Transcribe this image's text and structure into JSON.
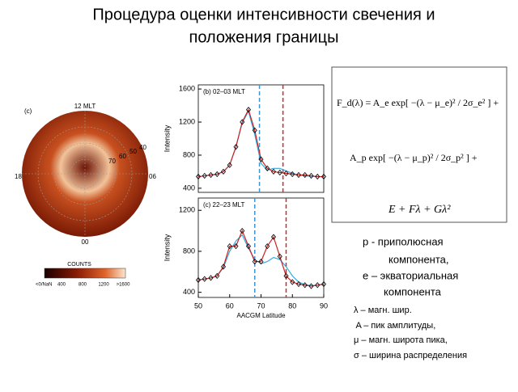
{
  "title_lines": [
    "Процедура оценки интенсивности свечения и",
    "положения границы"
  ],
  "polar_plot": {
    "panel_label": "(c)",
    "top_label": "12 MLT",
    "left_label": "18",
    "right_label": "06",
    "bottom_label": "00",
    "lat_labels": [
      "40",
      "50",
      "60",
      "70"
    ],
    "colorbar": {
      "title": "COUNTS",
      "ticks": [
        "<0/NaN",
        "400",
        "800",
        "1200",
        ">1600"
      ]
    }
  },
  "charts": [
    {
      "type": "line",
      "panel_label": "(b) 02–03 MLT",
      "y_label": "Intensity",
      "x": [
        50,
        52,
        54,
        56,
        58,
        60,
        62,
        64,
        66,
        68,
        70,
        72,
        74,
        76,
        78,
        80,
        82,
        84,
        86,
        88,
        90
      ],
      "series": [
        {
          "color": "#cc2222",
          "values": [
            540,
            550,
            560,
            570,
            600,
            680,
            900,
            1200,
            1350,
            1100,
            750,
            640,
            600,
            590,
            580,
            570,
            560,
            560,
            550,
            540,
            540
          ]
        },
        {
          "color": "#33aadd",
          "values": [
            540,
            550,
            560,
            570,
            600,
            680,
            900,
            1190,
            1330,
            1050,
            700,
            620,
            640,
            640,
            610,
            580,
            560,
            550,
            545,
            540,
            540
          ]
        }
      ],
      "vlines": [
        {
          "value": 69.5,
          "color": "#3399dd"
        },
        {
          "value": 77,
          "color": "#dd2222"
        }
      ],
      "xlim": [
        50,
        90
      ],
      "ylim": [
        350,
        1650
      ],
      "yticks": [
        400,
        800,
        1200,
        1600
      ]
    },
    {
      "type": "line",
      "panel_label": "(c) 22–23 MLT",
      "y_label": "Intensity",
      "x_label": "AACGM Latitude",
      "x": [
        50,
        52,
        54,
        56,
        58,
        60,
        62,
        64,
        66,
        68,
        70,
        72,
        74,
        76,
        78,
        80,
        82,
        84,
        86,
        88,
        90
      ],
      "series": [
        {
          "color": "#cc2222",
          "values": [
            520,
            530,
            540,
            560,
            650,
            850,
            850,
            1000,
            850,
            700,
            700,
            850,
            940,
            750,
            560,
            500,
            480,
            470,
            460,
            470,
            480
          ]
        },
        {
          "color": "#33aadd",
          "values": [
            520,
            530,
            540,
            560,
            640,
            800,
            900,
            960,
            830,
            720,
            680,
            700,
            740,
            720,
            650,
            560,
            500,
            475,
            465,
            470,
            480
          ]
        }
      ],
      "vlines": [
        {
          "value": 68,
          "color": "#3399dd"
        },
        {
          "value": 78,
          "color": "#dd2222"
        }
      ],
      "xlim": [
        50,
        90
      ],
      "ylim": [
        350,
        1320
      ],
      "yticks": [
        400,
        800,
        1200
      ],
      "xticks": [
        50,
        60,
        70,
        80,
        90
      ]
    }
  ],
  "formula_lines": [
    "F_d(λ) = A_e exp[ −(λ − μ_e)² / 2σ_e² ] +",
    "A_p exp[ −(λ − μ_p)² / 2σ_p² ] +",
    "E + Fλ + Gλ²"
  ],
  "legend_lines": [
    "p -  приполюсная",
    "компонента,",
    "e – экваториальная",
    "компонента"
  ],
  "definitions": [
    "λ – магн. шир.",
    " A – пик амплитуды,",
    "μ – магн. широта пика,",
    "σ – ширина распределения"
  ]
}
